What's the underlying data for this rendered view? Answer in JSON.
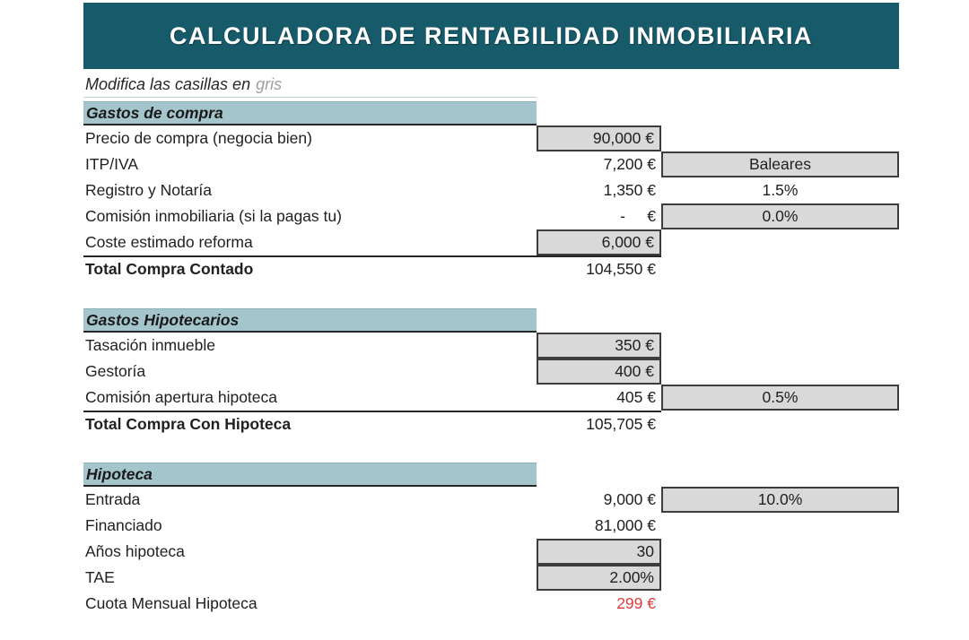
{
  "title_banner": {
    "title": "CALCULADORA DE RENTABILIDAD INMOBILIARIA",
    "bg_color": "#175A69",
    "text_color": "#FFFFFF"
  },
  "note": {
    "prefix": "Modifica las casillas en",
    "highlight": "gris",
    "highlight_color": "#9E9E9E"
  },
  "palette": {
    "section_header_bg": "#A4C5CB",
    "editable_cell_bg": "#D9D9D9",
    "editable_cell_border": "#3D3D3D",
    "result_red": "#E03A3A",
    "text": "#212121"
  },
  "sections": [
    {
      "title": "Gastos de compra",
      "rows": [
        {
          "label": "Precio de compra (negocia bien)",
          "value": "90,000 €",
          "value_type": "input"
        },
        {
          "label": "ITP/IVA",
          "value": "7,200 €",
          "value_type": "plain",
          "right": "Baleares",
          "right_type": "input"
        },
        {
          "label": "Registro y Notaría",
          "value": "1,350 €",
          "value_type": "plain",
          "right": "1.5%",
          "right_type": "plain"
        },
        {
          "label": "Comisión inmobiliaria (si la pagas tu)",
          "value": "-     €",
          "value_type": "plain",
          "right": "0.0%",
          "right_type": "input"
        },
        {
          "label": "Coste estimado reforma",
          "value": "6,000 €",
          "value_type": "input"
        },
        {
          "label": "Total Compra Contado",
          "value": "104,550 €",
          "value_type": "plain",
          "is_total": true
        }
      ]
    },
    {
      "title": "Gastos Hipotecarios",
      "rows": [
        {
          "label": "Tasación inmueble",
          "value": "350 €",
          "value_type": "input"
        },
        {
          "label": "Gestoría",
          "value": "400 €",
          "value_type": "input"
        },
        {
          "label": "Comisión apertura hipoteca",
          "value": "405 €",
          "value_type": "plain",
          "right": "0.5%",
          "right_type": "input"
        },
        {
          "label": "Total Compra Con Hipoteca",
          "value": "105,705 €",
          "value_type": "plain",
          "is_total": true
        }
      ]
    },
    {
      "title": "Hipoteca",
      "rows": [
        {
          "label": "Entrada",
          "value": "9,000 €",
          "value_type": "plain",
          "right": "10.0%",
          "right_type": "input"
        },
        {
          "label": "Financiado",
          "value": "81,000 €",
          "value_type": "plain"
        },
        {
          "label": "Años hipoteca",
          "value": "30",
          "value_type": "input"
        },
        {
          "label": "TAE",
          "value": "2.00%",
          "value_type": "input"
        },
        {
          "label": "Cuota Mensual Hipoteca",
          "value": "299 €",
          "value_type": "result_red"
        }
      ]
    }
  ]
}
